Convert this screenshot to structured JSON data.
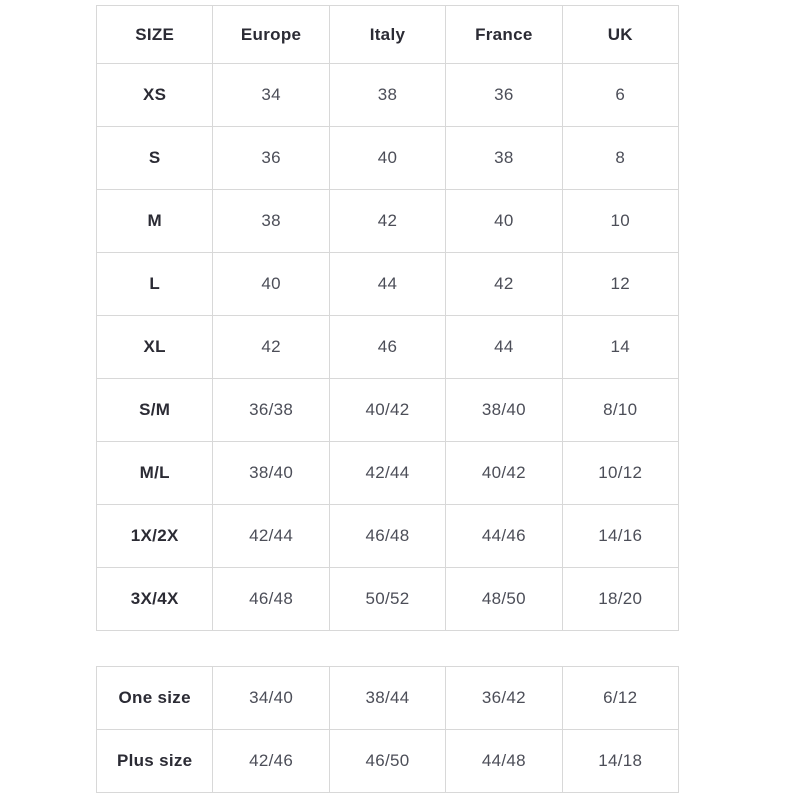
{
  "colors": {
    "background": "#ffffff",
    "border": "#d8d8d8",
    "header_text": "#2b2b34",
    "value_text": "#4c4e58"
  },
  "main_table": {
    "headers": [
      "SIZE",
      "Europe",
      "Italy",
      "France",
      "UK"
    ],
    "rows": [
      {
        "size": "XS",
        "values": [
          "34",
          "38",
          "36",
          "6"
        ]
      },
      {
        "size": "S",
        "values": [
          "36",
          "40",
          "38",
          "8"
        ]
      },
      {
        "size": "M",
        "values": [
          "38",
          "42",
          "40",
          "10"
        ]
      },
      {
        "size": "L",
        "values": [
          "40",
          "44",
          "42",
          "12"
        ]
      },
      {
        "size": "XL",
        "values": [
          "42",
          "46",
          "44",
          "14"
        ]
      },
      {
        "size": "S/M",
        "values": [
          "36/38",
          "40/42",
          "38/40",
          "8/10"
        ]
      },
      {
        "size": "M/L",
        "values": [
          "38/40",
          "42/44",
          "40/42",
          "10/12"
        ]
      },
      {
        "size": "1X/2X",
        "values": [
          "42/44",
          "46/48",
          "44/46",
          "14/16"
        ]
      },
      {
        "size": "3X/4X",
        "values": [
          "46/48",
          "50/52",
          "48/50",
          "18/20"
        ]
      }
    ]
  },
  "extra_table": {
    "rows": [
      {
        "size": "One size",
        "values": [
          "34/40",
          "38/44",
          "36/42",
          "6/12"
        ]
      },
      {
        "size": "Plus size",
        "values": [
          "42/46",
          "46/50",
          "44/48",
          "14/18"
        ]
      }
    ]
  }
}
